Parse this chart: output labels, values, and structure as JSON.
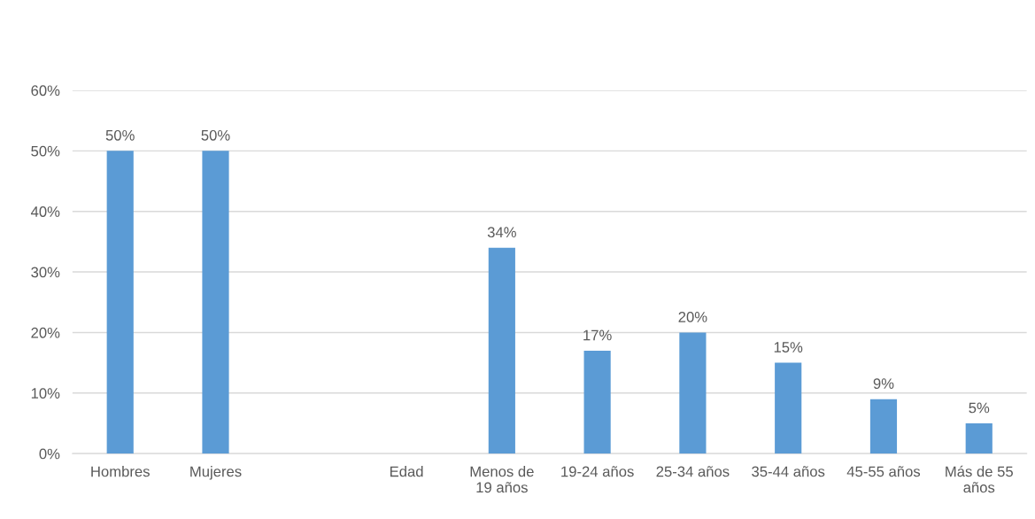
{
  "chart_data": {
    "type": "bar",
    "categories": [
      "Hombres",
      "Mujeres",
      null,
      "Edad",
      "Menos de\n19 años",
      "19-24 años",
      "25-34 años",
      "35-44 años",
      "45-55 años",
      "Más de 55\naños"
    ],
    "values": [
      50,
      50,
      null,
      null,
      34,
      17,
      20,
      15,
      9,
      5
    ],
    "value_labels": [
      "50%",
      "50%",
      null,
      null,
      "34%",
      "17%",
      "20%",
      "15%",
      "9%",
      "5%"
    ],
    "color": "#5b9bd5",
    "ylim": [
      0,
      60
    ],
    "yticks": [
      {
        "value": 0,
        "label": "0%"
      },
      {
        "value": 10,
        "label": "10%"
      },
      {
        "value": 20,
        "label": "20%"
      },
      {
        "value": 30,
        "label": "30%"
      },
      {
        "value": 40,
        "label": "40%"
      },
      {
        "value": 50,
        "label": "50%"
      },
      {
        "value": 60,
        "label": "60%"
      }
    ],
    "grid": "y",
    "legend": false
  }
}
